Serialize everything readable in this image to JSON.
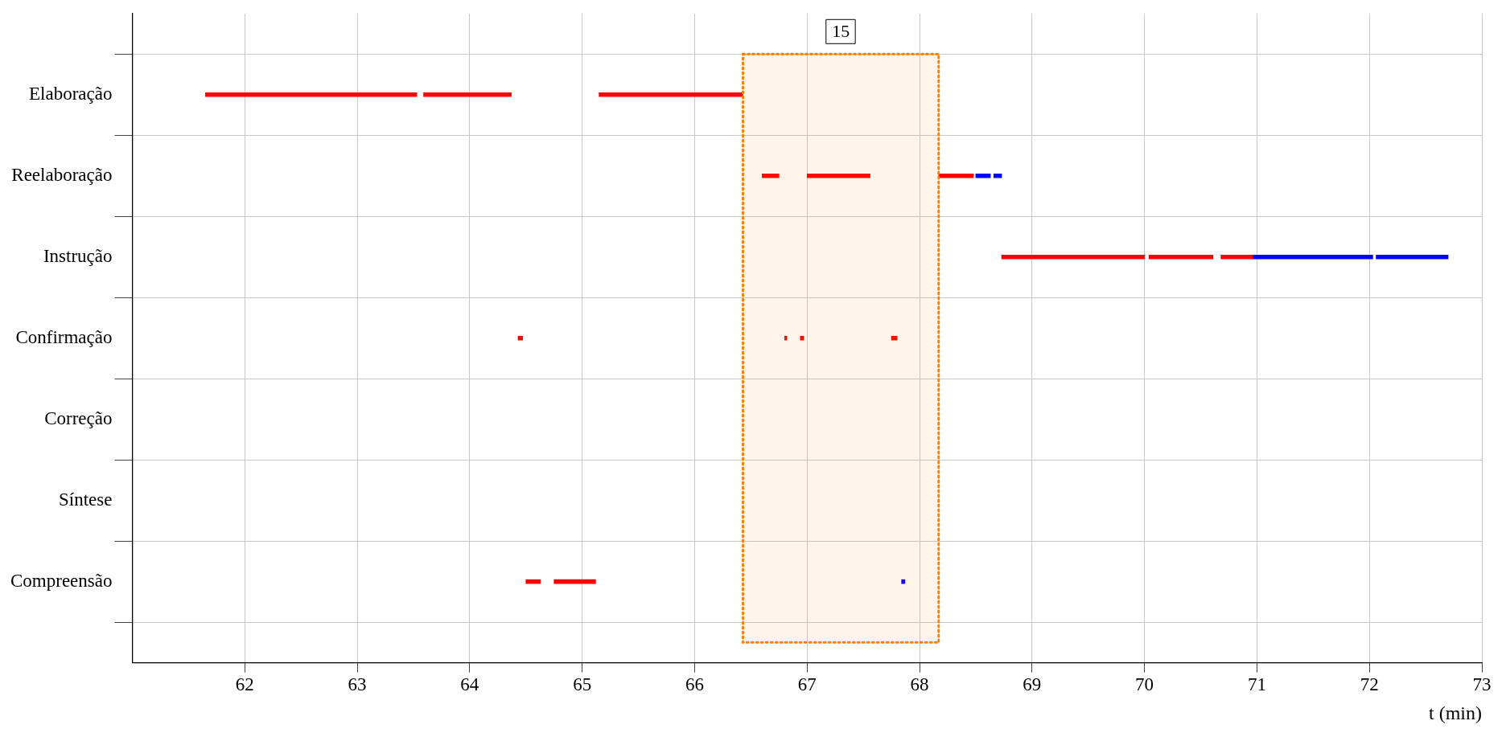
{
  "chart_data": {
    "type": "bar",
    "orientation": "horizontal",
    "xlabel": "t (min)",
    "categories": [
      "Elaboração",
      "Reelaboração",
      "Instrução",
      "Confirmação",
      "Correção",
      "Síntese",
      "Compreensão"
    ],
    "series": [
      {
        "color": "#ff0000",
        "base": [
          61.65,
          66.6,
          68.73,
          64.43,
          null,
          null,
          64.5
        ],
        "values": [
          1.88,
          0.15,
          1.27,
          0.04,
          null,
          null,
          0.13
        ]
      },
      {
        "color": "#ff0000",
        "base": [
          63.59,
          67.0,
          70.04,
          66.8,
          null,
          null,
          64.75
        ],
        "values": [
          0.78,
          0.56,
          0.57,
          0.02,
          null,
          null,
          0.37
        ]
      },
      {
        "color": "#ff0000",
        "base": [
          65.15,
          68.17,
          70.68,
          66.94,
          null,
          null,
          null
        ],
        "values": [
          1.28,
          0.31,
          0.28,
          0.03,
          null,
          null,
          null
        ]
      },
      {
        "color": "#ff0000",
        "base": [
          null,
          null,
          null,
          67.75,
          null,
          null,
          null
        ],
        "values": [
          null,
          null,
          null,
          0.05,
          null,
          null,
          null
        ]
      },
      {
        "color": "#0000ff",
        "base": [
          null,
          68.5,
          70.96,
          null,
          null,
          null,
          67.84
        ],
        "values": [
          null,
          0.13,
          1.07,
          null,
          null,
          null,
          0.03
        ]
      },
      {
        "color": "#0000ff",
        "base": [
          null,
          68.66,
          72.06,
          null,
          null,
          null,
          null
        ],
        "values": [
          null,
          0.07,
          0.64,
          null,
          null,
          null,
          null
        ]
      }
    ],
    "xlim": [
      61,
      73
    ],
    "xticks": [
      62,
      63,
      64,
      65,
      66,
      67,
      68,
      69,
      70,
      71,
      72,
      73
    ],
    "bands": [
      {
        "axis": "x",
        "from": 66.43,
        "to": 68.17,
        "label": "15",
        "color": "#ff8000"
      }
    ],
    "grid": true
  }
}
